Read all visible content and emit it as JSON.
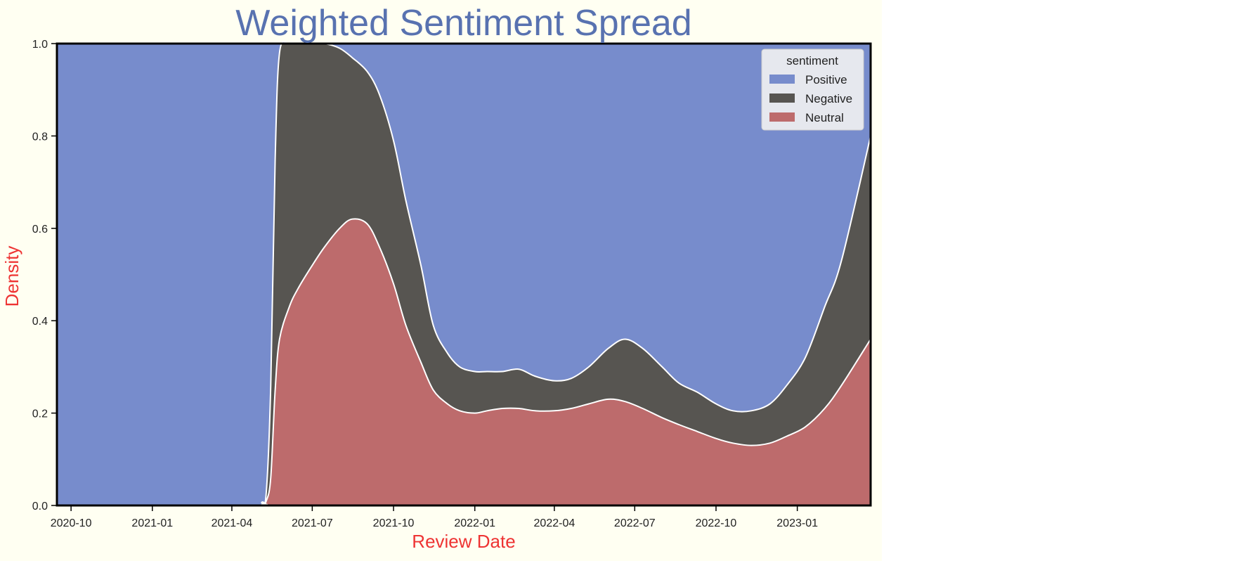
{
  "chart_data": {
    "type": "area",
    "stacking": "fill",
    "title": "Weighted Sentiment Spread",
    "xlabel": "Review Date",
    "ylabel": "Density",
    "xlim": [
      "2020-09-15",
      "2023-03-25"
    ],
    "ylim": [
      0,
      1
    ],
    "x_ticks": [
      "2020-10",
      "2021-01",
      "2021-04",
      "2021-07",
      "2021-10",
      "2022-01",
      "2022-04",
      "2022-07",
      "2022-10",
      "2023-01"
    ],
    "y_ticks": [
      "0.0",
      "0.2",
      "0.4",
      "0.6",
      "0.8",
      "1.0"
    ],
    "grid": false,
    "legend": {
      "title": "sentiment",
      "placement": "top-right"
    },
    "x": [
      "2020-09-15",
      "2021-04-20",
      "2021-05-05",
      "2021-05-10",
      "2021-05-15",
      "2021-05-20",
      "2021-05-25",
      "2021-06-05",
      "2021-06-15",
      "2021-07-01",
      "2021-07-15",
      "2021-08-01",
      "2021-08-15",
      "2021-09-01",
      "2021-09-15",
      "2021-10-01",
      "2021-10-15",
      "2021-11-01",
      "2021-11-15",
      "2021-12-01",
      "2021-12-15",
      "2022-01-01",
      "2022-01-15",
      "2022-02-01",
      "2022-02-20",
      "2022-03-10",
      "2022-04-01",
      "2022-04-20",
      "2022-05-10",
      "2022-06-01",
      "2022-06-20",
      "2022-07-10",
      "2022-08-01",
      "2022-08-20",
      "2022-09-10",
      "2022-10-01",
      "2022-10-20",
      "2022-11-10",
      "2022-12-01",
      "2022-12-20",
      "2023-01-10",
      "2023-02-01",
      "2023-02-20",
      "2023-03-25"
    ],
    "series": [
      {
        "name": "Neutral",
        "color": "#bd6b6c",
        "values": [
          0,
          0,
          0.002,
          0.01,
          0.06,
          0.25,
          0.36,
          0.43,
          0.47,
          0.52,
          0.56,
          0.6,
          0.62,
          0.61,
          0.56,
          0.48,
          0.39,
          0.31,
          0.25,
          0.22,
          0.205,
          0.2,
          0.205,
          0.21,
          0.21,
          0.205,
          0.205,
          0.21,
          0.22,
          0.23,
          0.225,
          0.21,
          0.19,
          0.175,
          0.16,
          0.145,
          0.135,
          0.13,
          0.135,
          0.15,
          0.17,
          0.21,
          0.26,
          0.36
        ]
      },
      {
        "name": "Negative",
        "color": "#575551",
        "values": [
          0,
          0,
          0.005,
          0.02,
          0.2,
          0.5,
          0.62,
          0.57,
          0.53,
          0.48,
          0.44,
          0.39,
          0.35,
          0.33,
          0.33,
          0.31,
          0.27,
          0.21,
          0.14,
          0.11,
          0.095,
          0.09,
          0.085,
          0.08,
          0.085,
          0.075,
          0.065,
          0.065,
          0.08,
          0.11,
          0.135,
          0.13,
          0.11,
          0.09,
          0.085,
          0.075,
          0.07,
          0.075,
          0.085,
          0.11,
          0.15,
          0.22,
          0.27,
          0.44
        ]
      },
      {
        "name": "Positive",
        "color": "#778ccc",
        "values": [
          1,
          1,
          0.993,
          0.97,
          0.74,
          0.25,
          0.02,
          0,
          0,
          0,
          0,
          0.01,
          0.03,
          0.06,
          0.11,
          0.21,
          0.34,
          0.48,
          0.61,
          0.67,
          0.7,
          0.71,
          0.71,
          0.71,
          0.705,
          0.72,
          0.73,
          0.725,
          0.7,
          0.66,
          0.64,
          0.66,
          0.7,
          0.735,
          0.755,
          0.78,
          0.795,
          0.795,
          0.78,
          0.74,
          0.68,
          0.57,
          0.47,
          0.2
        ]
      }
    ],
    "legend_order": [
      "Positive",
      "Negative",
      "Neutral"
    ],
    "colors": {
      "background": "#fffff2",
      "title": "#5872b0",
      "axis_label": "#ee3333",
      "tick_text": "#222222",
      "boundary": "#ffffff",
      "legend_bg": "#e6e8ee"
    }
  }
}
